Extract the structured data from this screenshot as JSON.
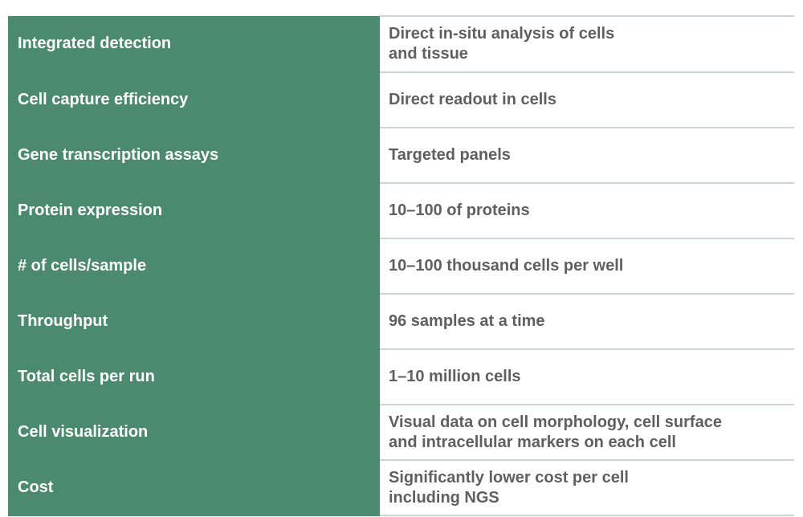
{
  "rows": [
    {
      "label": "Integrated detection",
      "value_lines": [
        "Direct in-situ analysis of cells",
        "and tissue"
      ]
    },
    {
      "label": "Cell capture efficiency",
      "value_lines": [
        "Direct readout in cells"
      ]
    },
    {
      "label": "Gene transcription assays",
      "value_lines": [
        "Targeted panels"
      ]
    },
    {
      "label": "Protein expression",
      "value_lines": [
        "10–100 of proteins"
      ]
    },
    {
      "label": "# of cells/sample",
      "value_lines": [
        "10–100 thousand cells per well"
      ]
    },
    {
      "label": "Throughput",
      "value_lines": [
        "96 samples at a time"
      ]
    },
    {
      "label": "Total cells per run",
      "value_lines": [
        "1–10 million cells"
      ]
    },
    {
      "label": "Cell visualization",
      "value_lines": [
        "Visual data on cell morphology, cell surface",
        "and intracellular markers on each cell"
      ]
    },
    {
      "label": "Cost",
      "value_lines": [
        "Significantly lower cost per cell",
        "including NGS"
      ]
    }
  ],
  "colors": {
    "label_background": "#4b8a6f",
    "label_text": "#ffffff",
    "value_text": "#5f5f5f",
    "divider": "#cfd6d2"
  }
}
